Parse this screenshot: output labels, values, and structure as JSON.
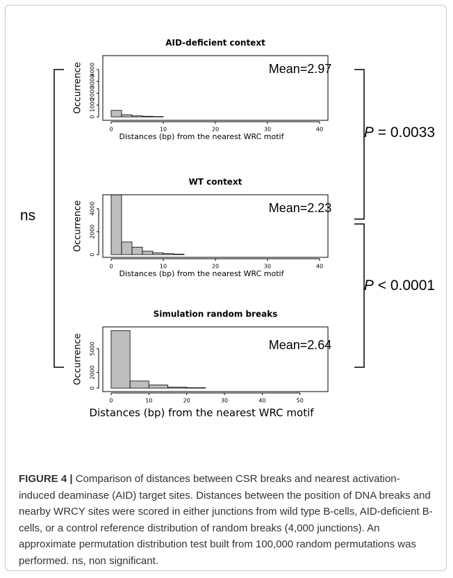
{
  "chart_data": [
    {
      "type": "histogram",
      "title": "AID-deficient context",
      "xlabel": "Distances (bp) from the nearest WRC motif",
      "ylabel": "Occurrence",
      "annotation": "Mean=2.97",
      "bins": [
        0,
        2,
        4,
        6,
        8,
        10
      ],
      "values": [
        550,
        180,
        90,
        50,
        30
      ],
      "color": "#bebebe",
      "xlim": [
        -1.6,
        41.6
      ],
      "xticks": [
        0,
        10,
        20,
        30,
        40
      ],
      "ylim": [
        -290,
        5180
      ],
      "yticks": [
        0,
        1000,
        2000,
        3000,
        4000
      ]
    },
    {
      "type": "histogram",
      "title": "WT context",
      "xlabel": "Distances (bp) from the nearest WRC motif",
      "ylabel": "Occurrence",
      "annotation": "Mean=2.23",
      "bins": [
        0,
        2,
        4,
        6,
        8,
        10,
        12,
        14
      ],
      "values": [
        5200,
        1100,
        650,
        300,
        150,
        80,
        40
      ],
      "color": "#bebebe",
      "xlim": [
        -1.6,
        41.6
      ],
      "xticks": [
        0,
        10,
        20,
        30,
        40
      ],
      "ylim": [
        -240,
        5210
      ],
      "yticks": [
        0,
        2000,
        4000
      ]
    },
    {
      "type": "histogram",
      "title": "Simulation random breaks",
      "xlabel": "Distances (bp) from the nearest WRC motif",
      "ylabel": "Occurrence",
      "annotation": "Mean=2.64",
      "bins": [
        0,
        5,
        10,
        15,
        20,
        25
      ],
      "values": [
        7300,
        900,
        400,
        120,
        50
      ],
      "color": "#bebebe",
      "xlim": [
        -2.2,
        57.4
      ],
      "xticks": [
        0,
        10,
        20,
        30,
        40,
        50
      ],
      "ylim": [
        -440,
        7770
      ],
      "yticks": [
        0,
        2000,
        5000
      ]
    }
  ],
  "comparisons": [
    {
      "symbol": "P",
      "text": "= 0.0033"
    },
    {
      "symbol": "P",
      "text": "< 0.0001"
    },
    {
      "text": "ns"
    }
  ],
  "caption": {
    "label": "FIGURE 4 |",
    "text": "Comparison of distances between CSR breaks and nearest activation-induced deaminase (AID) target sites. Distances between the position of DNA breaks and nearby WRCY sites were scored in either junctions from wild type B-cells, AID-deficient B-cells, or a control reference distribution of random breaks (4,000 junctions). An approximate permutation distribution test built from 100,000 random permutations was performed. ns, non significant."
  }
}
